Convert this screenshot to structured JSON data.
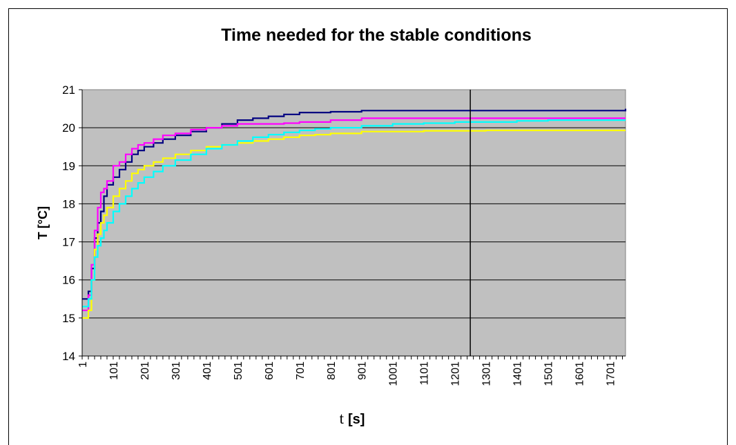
{
  "chart_data": {
    "type": "line",
    "title": "Time needed for the stable conditions",
    "ylabel": "T [°C]",
    "xlabel_symbol": "t",
    "xlabel_unit": "[s]",
    "ylim": [
      14,
      21
    ],
    "yticks": [
      "14",
      "15",
      "16",
      "17",
      "18",
      "19",
      "20",
      "21"
    ],
    "xlim": [
      1,
      1751
    ],
    "xticks": [
      "1",
      "101",
      "201",
      "301",
      "401",
      "501",
      "601",
      "701",
      "801",
      "901",
      "1001",
      "1101",
      "1201",
      "1301",
      "1401",
      "1501",
      "1601",
      "1701"
    ],
    "grid": "horizontal",
    "background": "#c0c0c0",
    "marker_line_x": 1251,
    "series": [
      {
        "color": "#000080",
        "x": [
          1,
          11,
          21,
          31,
          41,
          51,
          61,
          71,
          81,
          101,
          121,
          141,
          161,
          181,
          201,
          231,
          261,
          301,
          351,
          401,
          451,
          501,
          551,
          601,
          651,
          701,
          751,
          801,
          901,
          1001,
          1101,
          1201,
          1301,
          1401,
          1501,
          1601,
          1701,
          1751
        ],
        "y": [
          15.5,
          15.5,
          15.7,
          16.3,
          17.1,
          17.5,
          17.8,
          18.2,
          18.5,
          18.7,
          18.9,
          19.1,
          19.3,
          19.4,
          19.5,
          19.6,
          19.7,
          19.8,
          19.9,
          20.0,
          20.1,
          20.2,
          20.25,
          20.3,
          20.35,
          20.4,
          20.4,
          20.42,
          20.45,
          20.45,
          20.45,
          20.45,
          20.45,
          20.45,
          20.45,
          20.45,
          20.45,
          20.5
        ]
      },
      {
        "color": "#ff00ff",
        "x": [
          1,
          11,
          21,
          31,
          41,
          51,
          61,
          71,
          81,
          101,
          121,
          141,
          161,
          181,
          201,
          231,
          261,
          301,
          351,
          401,
          451,
          501,
          551,
          601,
          651,
          701,
          751,
          801,
          901,
          1001,
          1101,
          1201,
          1301,
          1401,
          1501,
          1601,
          1701,
          1751
        ],
        "y": [
          15.2,
          15.2,
          15.6,
          16.4,
          17.3,
          17.9,
          18.3,
          18.4,
          18.6,
          19.0,
          19.1,
          19.3,
          19.45,
          19.55,
          19.6,
          19.7,
          19.8,
          19.85,
          19.95,
          20.0,
          20.05,
          20.1,
          20.1,
          20.1,
          20.12,
          20.15,
          20.15,
          20.2,
          20.25,
          20.25,
          20.25,
          20.25,
          20.25,
          20.25,
          20.25,
          20.25,
          20.25,
          20.25
        ]
      },
      {
        "color": "#ffff00",
        "x": [
          1,
          11,
          21,
          31,
          41,
          51,
          61,
          71,
          81,
          101,
          121,
          141,
          161,
          181,
          201,
          231,
          261,
          301,
          351,
          401,
          451,
          501,
          551,
          601,
          651,
          701,
          751,
          801,
          901,
          1001,
          1101,
          1201,
          1301,
          1401,
          1501,
          1601,
          1701,
          1751
        ],
        "y": [
          15.0,
          15.0,
          15.2,
          16.0,
          16.8,
          17.2,
          17.5,
          17.7,
          17.9,
          18.2,
          18.4,
          18.6,
          18.8,
          18.9,
          19.0,
          19.1,
          19.2,
          19.3,
          19.4,
          19.5,
          19.55,
          19.6,
          19.65,
          19.7,
          19.75,
          19.8,
          19.82,
          19.85,
          19.9,
          19.9,
          19.92,
          19.92,
          19.93,
          19.93,
          19.93,
          19.93,
          19.93,
          19.93
        ]
      },
      {
        "color": "#00ffff",
        "x": [
          1,
          11,
          21,
          31,
          41,
          51,
          61,
          71,
          81,
          101,
          121,
          141,
          161,
          181,
          201,
          231,
          261,
          301,
          351,
          401,
          451,
          501,
          551,
          601,
          651,
          701,
          751,
          801,
          901,
          1001,
          1101,
          1201,
          1301,
          1401,
          1501,
          1601,
          1701,
          1751
        ],
        "y": [
          15.3,
          15.3,
          15.5,
          16.0,
          16.6,
          16.9,
          17.1,
          17.3,
          17.5,
          17.8,
          18.0,
          18.2,
          18.4,
          18.55,
          18.7,
          18.85,
          19.0,
          19.15,
          19.3,
          19.45,
          19.55,
          19.65,
          19.75,
          19.82,
          19.88,
          19.93,
          19.97,
          20.0,
          20.05,
          20.1,
          20.12,
          20.15,
          20.15,
          20.18,
          20.2,
          20.2,
          20.2,
          20.2
        ]
      }
    ]
  }
}
